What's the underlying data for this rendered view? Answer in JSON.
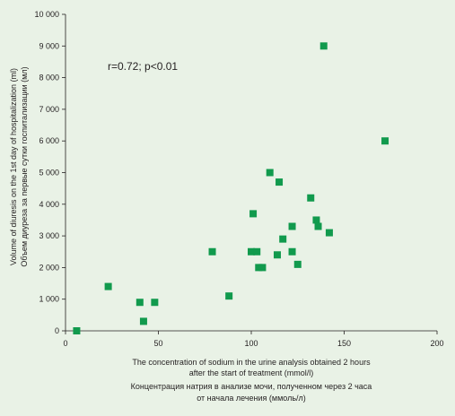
{
  "chart_data": {
    "type": "scatter",
    "annotation": "r=0.72; p<0.01",
    "ylabel_lines": [
      "Volume of diuresis on the 1st day of hospitalization (ml)",
      "Объем диуреза за первые сутки госпитализации (мл)"
    ],
    "xlabel_lines": [
      "The concentration of sodium in the urine analysis obtained 2 hours",
      "after the start of treatment (mmol/l)",
      "Концентрация натрия в анализе мочи, полученном через 2 часа",
      "от начала лечения (ммоль/л)"
    ],
    "xlim": [
      0,
      200
    ],
    "ylim": [
      0,
      10000
    ],
    "x_ticks": [
      0,
      50,
      100,
      150,
      200
    ],
    "x_tick_labels": [
      "0",
      "50",
      "100",
      "150",
      "200"
    ],
    "y_ticks": [
      0,
      1000,
      2000,
      3000,
      4000,
      5000,
      6000,
      7000,
      8000,
      9000,
      10000
    ],
    "y_tick_labels": [
      "0",
      "1 000",
      "2 000",
      "3 000",
      "4 000",
      "5 000",
      "6 000",
      "7 000",
      "8 000",
      "9 000",
      "10 000"
    ],
    "grid": false,
    "marker": "square",
    "point_color": "#119a4d",
    "points": [
      {
        "x": 6,
        "y": 0
      },
      {
        "x": 23,
        "y": 1400
      },
      {
        "x": 40,
        "y": 900
      },
      {
        "x": 42,
        "y": 300
      },
      {
        "x": 48,
        "y": 900
      },
      {
        "x": 79,
        "y": 2500
      },
      {
        "x": 88,
        "y": 1100
      },
      {
        "x": 100,
        "y": 2500
      },
      {
        "x": 101,
        "y": 3700
      },
      {
        "x": 103,
        "y": 2500
      },
      {
        "x": 104,
        "y": 2000
      },
      {
        "x": 106,
        "y": 2000
      },
      {
        "x": 110,
        "y": 5000
      },
      {
        "x": 114,
        "y": 2400
      },
      {
        "x": 115,
        "y": 4700
      },
      {
        "x": 117,
        "y": 2900
      },
      {
        "x": 122,
        "y": 2500
      },
      {
        "x": 122,
        "y": 3300
      },
      {
        "x": 125,
        "y": 2100
      },
      {
        "x": 132,
        "y": 4200
      },
      {
        "x": 135,
        "y": 3500
      },
      {
        "x": 136,
        "y": 3300
      },
      {
        "x": 139,
        "y": 9000
      },
      {
        "x": 142,
        "y": 3100
      },
      {
        "x": 172,
        "y": 6000
      }
    ]
  }
}
